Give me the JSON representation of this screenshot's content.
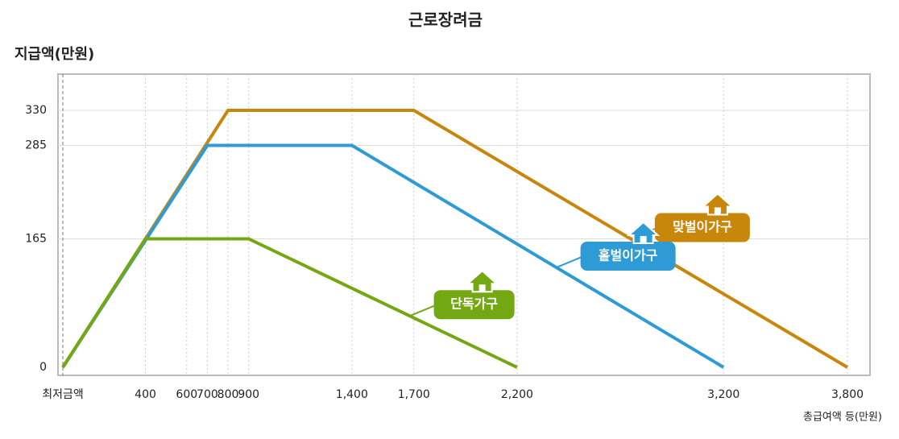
{
  "chart_data": {
    "type": "line",
    "title": "근로장려금",
    "y_label": "지급액(만원)",
    "x_label": "총급여액 등(만원)",
    "xlim": [
      0,
      3800
    ],
    "ylim": [
      0,
      360
    ],
    "xticks": [
      {
        "value": 0,
        "label": "최저금액"
      },
      400,
      600,
      700,
      800,
      900,
      {
        "value": 1400,
        "label": "1,400"
      },
      {
        "value": 1700,
        "label": "1,700"
      },
      {
        "value": 2200,
        "label": "2,200"
      },
      {
        "value": 3200,
        "label": "3,200"
      },
      {
        "value": 3800,
        "label": "3,800"
      }
    ],
    "yticks": [
      0,
      165,
      285,
      330
    ],
    "grid": true,
    "series": [
      {
        "name": "맞벌이가구",
        "color": "#c8860a",
        "x": [
          0,
          800,
          1700,
          3800
        ],
        "values": [
          0,
          330,
          330,
          0
        ]
      },
      {
        "name": "홑벌이가구",
        "color": "#2e9bd6",
        "x": [
          0,
          700,
          1400,
          3200
        ],
        "values": [
          0,
          285,
          285,
          0
        ]
      },
      {
        "name": "단독가구",
        "color": "#74a813",
        "x": [
          0,
          400,
          900,
          2200
        ],
        "values": [
          0,
          165,
          165,
          0
        ]
      }
    ]
  }
}
